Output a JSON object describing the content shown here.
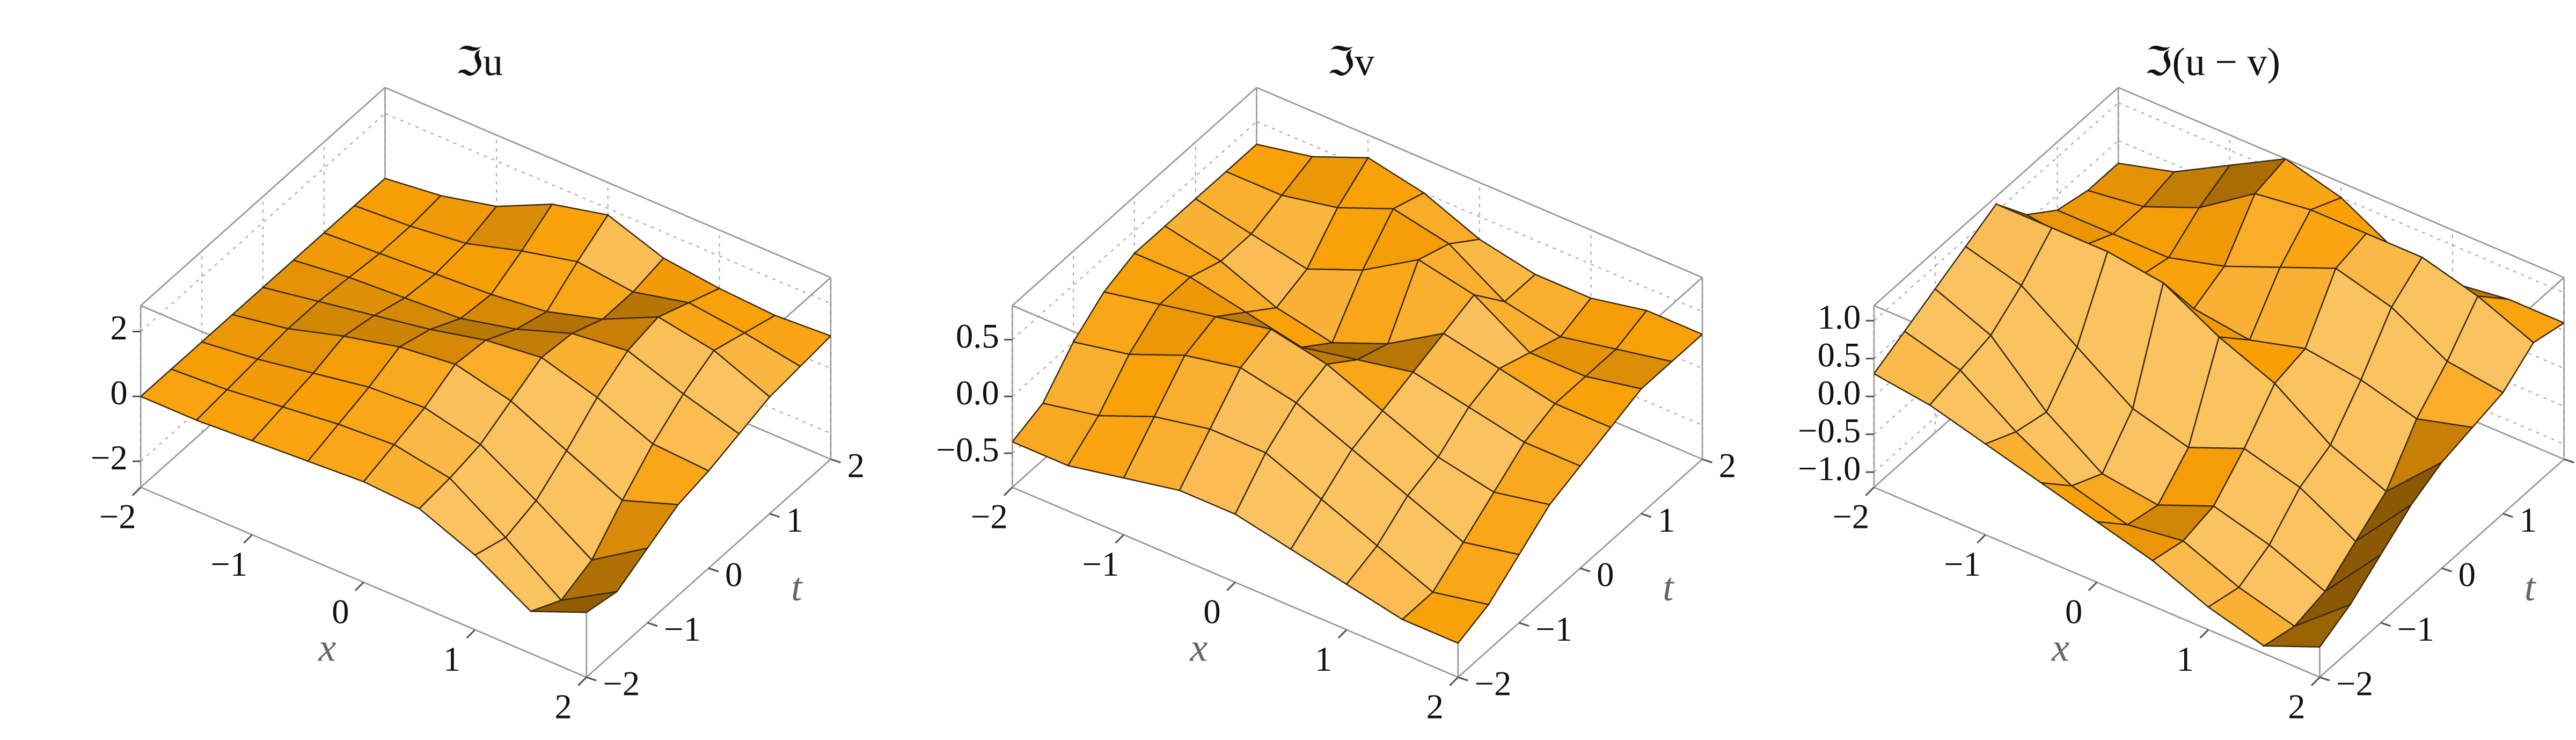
{
  "chart_data": [
    {
      "type": "surface",
      "title": "ℑu",
      "xlabel": "x",
      "ylabel": "t",
      "color": "#f4a219",
      "mesh_color": "#3a2a10",
      "x": [
        -2,
        -1.5,
        -1,
        -0.5,
        0,
        0.5,
        1,
        1.5,
        2
      ],
      "y": [
        -2,
        -1.5,
        -1,
        -0.5,
        0,
        0.5,
        1,
        1.5,
        2
      ],
      "z": [
        [
          0,
          0,
          0.1,
          0.2,
          0.3,
          0.2,
          -0.5,
          -1.5,
          -0.8
        ],
        [
          0,
          0.1,
          0.3,
          0.5,
          0.6,
          0.3,
          -0.8,
          -2,
          -1
        ],
        [
          0,
          0.2,
          0.5,
          0.8,
          0.9,
          0.5,
          -0.5,
          -1.6,
          -0.5
        ],
        [
          0,
          0.3,
          0.8,
          1.2,
          1.4,
          1,
          0.2,
          -0.6,
          0
        ],
        [
          0,
          0.3,
          0.6,
          0.9,
          1.3,
          1.5,
          1,
          0.3,
          0.2
        ],
        [
          0,
          0.2,
          0.3,
          0.4,
          0.8,
          1.4,
          1.6,
          1,
          0.5
        ],
        [
          0,
          0.1,
          0.2,
          0.3,
          0.5,
          1,
          1.8,
          1.5,
          0.8
        ],
        [
          0,
          0.1,
          0.3,
          0.8,
          1.2,
          1,
          1.4,
          1.2,
          0.9
        ],
        [
          0,
          0.2,
          0.6,
          1.4,
          1.8,
          1.2,
          1,
          0.9,
          1
        ]
      ],
      "xlim": [
        -2,
        2
      ],
      "ylim": [
        -2,
        2
      ],
      "zlim": [
        -2.8,
        2.8
      ],
      "xticks": [
        {
          "value": -2,
          "label": "−2"
        },
        {
          "value": -1,
          "label": "−1"
        },
        0,
        1,
        2
      ],
      "yticks": [
        {
          "value": -2,
          "label": "−2"
        },
        {
          "value": -1,
          "label": "−1"
        },
        0,
        1,
        2
      ],
      "zticks": [
        {
          "value": -2,
          "label": "−2"
        },
        0,
        2
      ]
    },
    {
      "type": "surface",
      "title": "ℑv",
      "xlabel": "x",
      "ylabel": "t",
      "color": "#f4a219",
      "mesh_color": "#3a2a10",
      "x": [
        -2,
        -1.5,
        -1,
        -0.5,
        0,
        0.5,
        1,
        1.5,
        2
      ],
      "y": [
        -2,
        -1.5,
        -1,
        -0.5,
        0,
        0.5,
        1,
        1.5,
        2
      ],
      "z": [
        [
          -0.4,
          -0.4,
          -0.3,
          -0.2,
          -0.2,
          -0.3,
          -0.4,
          -0.5,
          -0.5
        ],
        [
          -0.3,
          -0.2,
          0,
          0.1,
          0.1,
          -0.1,
          -0.3,
          -0.5,
          -0.4
        ],
        [
          0,
          0.1,
          0.3,
          0.4,
          0.3,
          0.1,
          -0.1,
          -0.3,
          -0.2
        ],
        [
          0.2,
          0.3,
          0.4,
          0.5,
          0.4,
          0.2,
          0,
          -0.1,
          0
        ],
        [
          0.3,
          0.3,
          0.2,
          0.1,
          0.2,
          0.3,
          0.2,
          0.1,
          0.1
        ],
        [
          0.3,
          0.2,
          0,
          -0.1,
          0.1,
          0.4,
          0.3,
          0.2,
          0.2
        ],
        [
          0.3,
          0.2,
          0.1,
          0.3,
          0.6,
          0.5,
          0.2,
          0.2,
          0.3
        ],
        [
          0.3,
          0.3,
          0.4,
          0.6,
          0.5,
          0.2,
          0.1,
          0.2,
          0.3
        ],
        [
          0.3,
          0.4,
          0.6,
          0.5,
          0.3,
          0.2,
          0.2,
          0.3,
          0.3
        ]
      ],
      "xlim": [
        -2,
        2
      ],
      "ylim": [
        -2,
        2
      ],
      "zlim": [
        -0.8,
        0.8
      ],
      "xticks": [
        {
          "value": -2,
          "label": "−2"
        },
        {
          "value": -1,
          "label": "−1"
        },
        0,
        1,
        2
      ],
      "yticks": [
        {
          "value": -2,
          "label": "−2"
        },
        {
          "value": -1,
          "label": "−1"
        },
        0,
        1,
        2
      ],
      "zticks": [
        {
          "value": -0.5,
          "label": "−0.5"
        },
        {
          "value": 0,
          "label": "0.0"
        },
        0.5
      ]
    },
    {
      "type": "surface",
      "title": "ℑ(u − v)",
      "xlabel": "x",
      "ylabel": "t",
      "color": "#f4a219",
      "mesh_color": "#3a2a10",
      "x": [
        -2,
        -1.5,
        -1,
        -0.5,
        0,
        0.5,
        1,
        1.5,
        2
      ],
      "y": [
        -2,
        -1.5,
        -1,
        -0.5,
        0,
        0.5,
        1,
        1.5,
        2
      ],
      "z": [
        [
          0.3,
          0.2,
          0,
          -0.2,
          -0.4,
          -0.6,
          -0.9,
          -1.1,
          -0.8
        ],
        [
          0.5,
          0.3,
          -0.2,
          -0.6,
          -0.8,
          -0.7,
          -1,
          -1.2,
          -0.6
        ],
        [
          0.7,
          0.4,
          -0.3,
          -0.8,
          -0.9,
          -0.6,
          -0.8,
          -1.1,
          -0.3
        ],
        [
          0.9,
          0.7,
          0.2,
          -0.3,
          -0.5,
          -0.2,
          -0.4,
          -0.8,
          0
        ],
        [
          1.1,
          1.1,
          1.1,
          1,
          0.6,
          0.3,
          -0.2,
          -0.5,
          0.2
        ],
        [
          0.6,
          0.5,
          0.4,
          0.3,
          0.2,
          0.4,
          0.3,
          0.1,
          0.3
        ],
        [
          0.3,
          0.3,
          0.3,
          0.5,
          0.8,
          1.1,
          0.9,
          0.5,
          0.4
        ],
        [
          0.2,
          0.3,
          0.6,
          1.1,
          1.2,
          1.2,
          1.2,
          1,
          0.7
        ],
        [
          0.2,
          0.4,
          0.8,
          1.2,
          1,
          0.6,
          0.5,
          0.6,
          0.6
        ]
      ],
      "xlim": [
        -2,
        2
      ],
      "ylim": [
        -2,
        2
      ],
      "zlim": [
        -1.2,
        1.2
      ],
      "xticks": [
        {
          "value": -2,
          "label": "−2"
        },
        {
          "value": -1,
          "label": "−1"
        },
        0,
        1,
        2
      ],
      "yticks": [
        {
          "value": -2,
          "label": "−2"
        },
        {
          "value": -1,
          "label": "−1"
        },
        0,
        1,
        2
      ],
      "zticks": [
        {
          "value": -1,
          "label": "−1.0"
        },
        {
          "value": -0.5,
          "label": "−0.5"
        },
        {
          "value": 0,
          "label": "0.0"
        },
        0.5,
        {
          "value": 1,
          "label": "1.0"
        }
      ]
    }
  ]
}
